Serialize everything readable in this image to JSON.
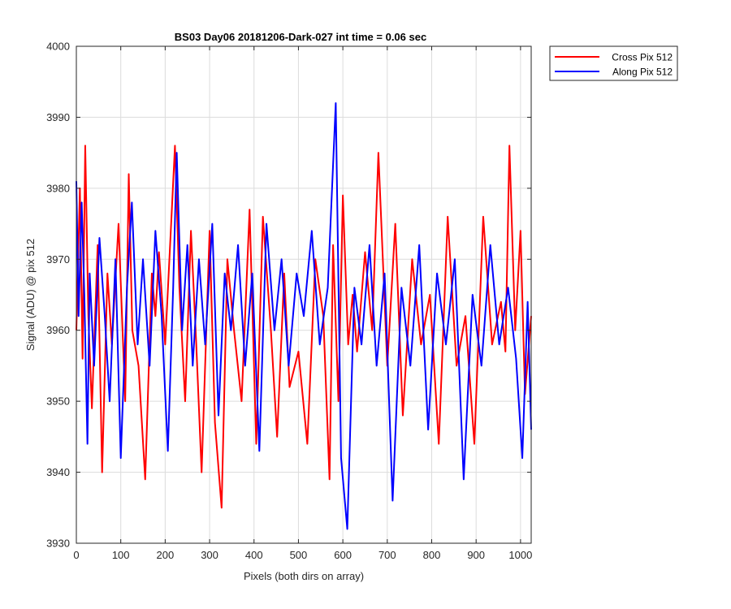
{
  "chart_data": {
    "type": "line",
    "title": "BS03 Day06 20181206-Dark-027 int time = 0.06 sec",
    "xlabel": "Pixels (both dirs on array)",
    "ylabel": "Signal (ADU) @ pix 512",
    "xlim": [
      0,
      1024
    ],
    "ylim": [
      3930,
      4000
    ],
    "xticks": [
      0,
      100,
      200,
      300,
      400,
      500,
      600,
      700,
      800,
      900,
      1000
    ],
    "yticks": [
      3930,
      3940,
      3950,
      3960,
      3970,
      3980,
      3990,
      4000
    ],
    "grid": true,
    "legend_position": "outside-top-right",
    "series": [
      {
        "name": "Cross Pix 512",
        "color": "#ff0000",
        "x": [
          0,
          8,
          14,
          20,
          27,
          35,
          48,
          58,
          70,
          80,
          95,
          110,
          118,
          126,
          140,
          155,
          170,
          178,
          186,
          200,
          215,
          222,
          232,
          245,
          258,
          270,
          282,
          300,
          312,
          327,
          340,
          355,
          372,
          390,
          405,
          420,
          438,
          452,
          468,
          480,
          500,
          520,
          538,
          556,
          570,
          578,
          590,
          600,
          612,
          622,
          632,
          650,
          666,
          680,
          700,
          718,
          735,
          756,
          776,
          796,
          816,
          836,
          856,
          876,
          896,
          916,
          936,
          956,
          966,
          975,
          988,
          1000,
          1010,
          1024
        ],
        "y": [
          3960,
          3980,
          3956,
          3986,
          3962,
          3949,
          3972,
          3940,
          3968,
          3958,
          3975,
          3950,
          3982,
          3960,
          3955,
          3939,
          3968,
          3962,
          3971,
          3958,
          3977,
          3986,
          3966,
          3950,
          3974,
          3958,
          3940,
          3974,
          3947,
          3935,
          3970,
          3960,
          3950,
          3977,
          3944,
          3976,
          3960,
          3945,
          3968,
          3952,
          3957,
          3944,
          3970,
          3962,
          3939,
          3972,
          3950,
          3979,
          3958,
          3965,
          3957,
          3971,
          3960,
          3985,
          3955,
          3975,
          3948,
          3970,
          3958,
          3965,
          3944,
          3976,
          3955,
          3962,
          3944,
          3976,
          3958,
          3964,
          3957,
          3986,
          3960,
          3974,
          3951,
          3962
        ]
      },
      {
        "name": "Along Pix 512",
        "color": "#0000ff",
        "x": [
          0,
          5,
          12,
          18,
          25,
          30,
          40,
          52,
          64,
          75,
          88,
          100,
          114,
          125,
          138,
          150,
          165,
          178,
          192,
          206,
          218,
          226,
          238,
          250,
          262,
          276,
          290,
          306,
          320,
          334,
          348,
          364,
          380,
          396,
          412,
          428,
          446,
          462,
          478,
          496,
          512,
          530,
          548,
          566,
          584,
          596,
          610,
          626,
          642,
          660,
          676,
          694,
          712,
          732,
          752,
          772,
          792,
          812,
          832,
          852,
          872,
          892,
          912,
          932,
          952,
          972,
          990,
          1004,
          1016,
          1024
        ],
        "y": [
          3981,
          3962,
          3978,
          3965,
          3944,
          3968,
          3955,
          3973,
          3962,
          3950,
          3970,
          3942,
          3966,
          3978,
          3958,
          3970,
          3955,
          3974,
          3962,
          3943,
          3966,
          3985,
          3960,
          3972,
          3955,
          3970,
          3958,
          3975,
          3948,
          3968,
          3960,
          3972,
          3955,
          3968,
          3943,
          3975,
          3960,
          3970,
          3955,
          3968,
          3962,
          3974,
          3958,
          3966,
          3992,
          3942,
          3932,
          3966,
          3958,
          3972,
          3955,
          3968,
          3936,
          3966,
          3955,
          3972,
          3946,
          3968,
          3958,
          3970,
          3939,
          3965,
          3955,
          3972,
          3958,
          3966,
          3956,
          3942,
          3964,
          3946
        ]
      }
    ]
  }
}
